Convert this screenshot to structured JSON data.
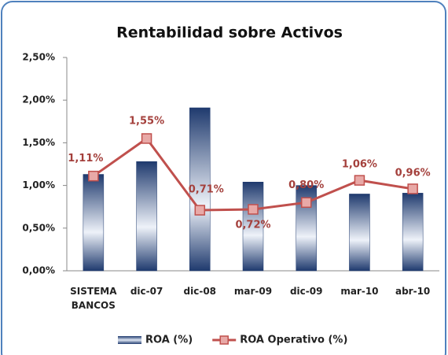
{
  "chart_data": {
    "type": "bar",
    "title": "Rentabilidad sobre Activos",
    "categories": [
      "SISTEMA BANCOS",
      "dic-07",
      "dic-08",
      "mar-09",
      "dic-09",
      "mar-10",
      "abr-10"
    ],
    "series": [
      {
        "name": "ROA (%)",
        "type": "bar",
        "color": "#1f3a6e",
        "values": [
          1.13,
          1.28,
          1.91,
          1.04,
          1.0,
          0.9,
          0.91
        ]
      },
      {
        "name": "ROA Operativo (%)",
        "type": "line",
        "color": "#c0504d",
        "values": [
          1.11,
          1.55,
          0.71,
          0.72,
          0.8,
          1.06,
          0.96
        ],
        "value_labels": [
          "1,11%",
          "1,55%",
          "0,71%",
          "0,72%",
          "0,80%",
          "1,06%",
          "0,96%"
        ]
      }
    ],
    "ylim": [
      0,
      2.5
    ],
    "yticks": [
      {
        "value": 0,
        "label": "0,00%"
      },
      {
        "value": 0.5,
        "label": "0,50%"
      },
      {
        "value": 1,
        "label": "1,00%"
      },
      {
        "value": 1.5,
        "label": "1,50%"
      },
      {
        "value": 2,
        "label": "2,00%"
      },
      {
        "value": 2.5,
        "label": "2,50%"
      }
    ],
    "legend": "bottom"
  }
}
